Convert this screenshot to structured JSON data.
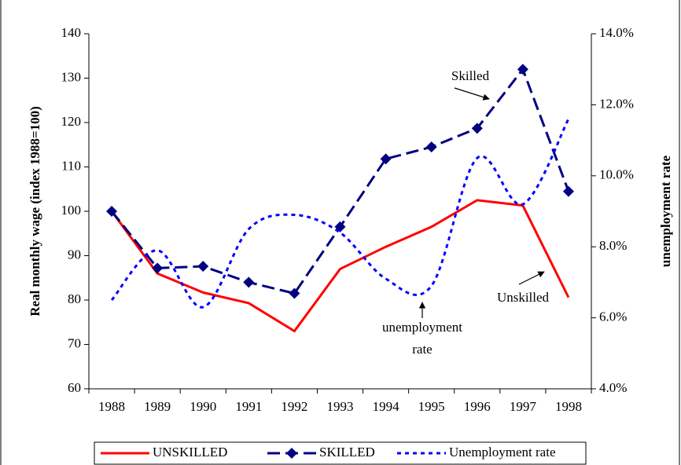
{
  "chart_data": {
    "type": "line",
    "y_label": "Real monthly wage (index 1988=100)",
    "y2_label": "unemployment rate",
    "categories": [
      "1988",
      "1989",
      "1990",
      "1991",
      "1992",
      "1993",
      "1994",
      "1995",
      "1996",
      "1997",
      "1998"
    ],
    "ylim": [
      60,
      140
    ],
    "yticks": [
      60,
      70,
      80,
      90,
      100,
      110,
      120,
      130,
      140
    ],
    "y2lim": [
      4,
      14
    ],
    "y2ticks": [
      {
        "value": 4,
        "label": "4.0%"
      },
      {
        "value": 6,
        "label": "6.0%"
      },
      {
        "value": 8,
        "label": "8.0%"
      },
      {
        "value": 10,
        "label": "10.0%"
      },
      {
        "value": 12,
        "label": "12.0%"
      },
      {
        "value": 14,
        "label": "14.0%"
      }
    ],
    "series": [
      {
        "name": "UNSKILLED",
        "color": "#ff0000",
        "values": [
          100,
          86,
          81.7,
          79.3,
          73,
          87,
          92,
          96.5,
          102.5,
          101.3,
          80.6
        ]
      },
      {
        "name": "SKILLED",
        "color": "#000080",
        "values": [
          100,
          87.2,
          87.6,
          84,
          81.5,
          96.5,
          111.8,
          114.5,
          118.7,
          132,
          104.5
        ]
      },
      {
        "name": "Unemployment rate",
        "color": "#0000ff",
        "axis": "y2",
        "values": [
          6.5,
          7.9,
          6.3,
          8.5,
          8.9,
          8.4,
          7.1,
          6.9,
          10.5,
          9.2,
          11.6
        ]
      }
    ],
    "annotations": [
      {
        "lines": [
          "Skilled"
        ]
      },
      {
        "lines": [
          "Unskilled"
        ]
      },
      {
        "lines": [
          "unemployment",
          "rate"
        ]
      }
    ]
  }
}
